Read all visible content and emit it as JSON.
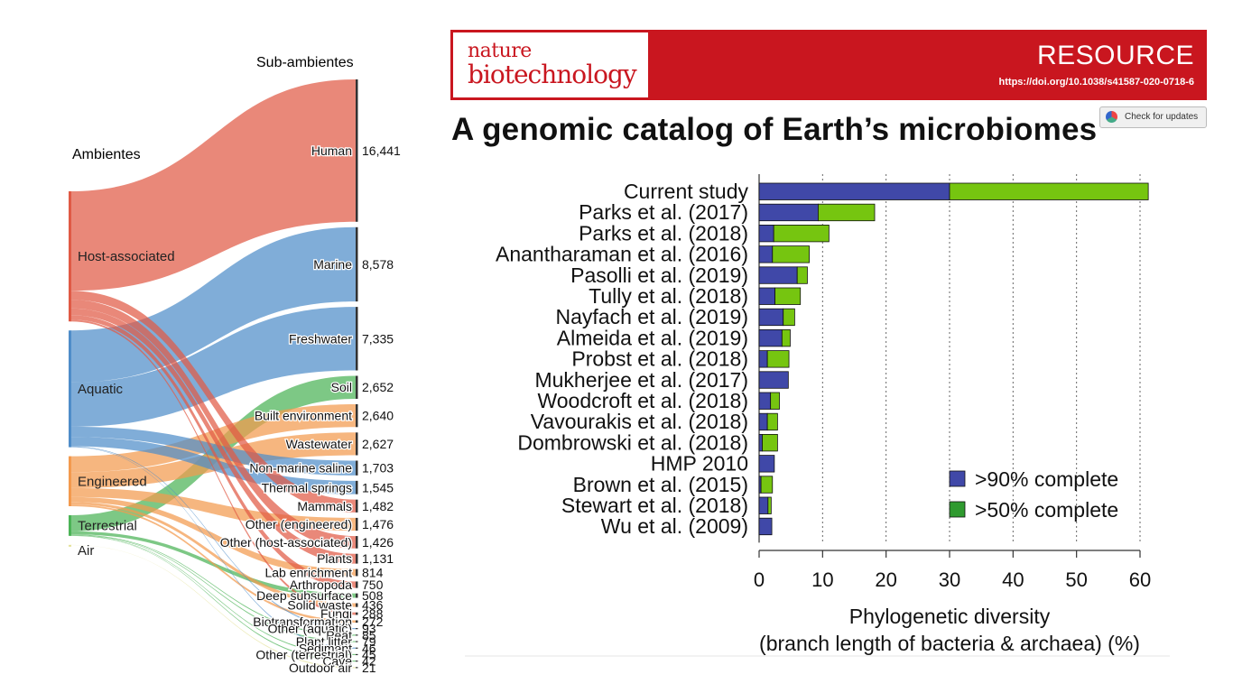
{
  "slide": {
    "label_ambientes": "Ambientes",
    "label_subambientes": "Sub-ambientes"
  },
  "paper": {
    "journal_line1": "nature",
    "journal_line2": "biotechnology",
    "section": "RESOURCE",
    "doi": "https://doi.org/10.1038/s41587-020-0718-6",
    "title": "A genomic catalog of Earth’s microbiomes",
    "check_updates": "Check for updates"
  },
  "colors": {
    "host": "#e05a45",
    "aquatic": "#4f8dc9",
    "engineered": "#f39a4e",
    "terrestrial": "#4bb356",
    "air": "#e5e29a",
    "bar_blue": "#4048a8",
    "bar_green": "#76c510",
    "legend_green": "#2f9a2f"
  },
  "chart_data": [
    {
      "type": "sankey",
      "sources": [
        "Host-associated",
        "Aquatic",
        "Engineered",
        "Terrestrial",
        "Air"
      ],
      "targets": [
        {
          "name": "Human",
          "value": "16,441",
          "source": "Host-associated"
        },
        {
          "name": "Marine",
          "value": "8,578",
          "source": "Aquatic"
        },
        {
          "name": "Freshwater",
          "value": "7,335",
          "source": "Aquatic"
        },
        {
          "name": "Soil",
          "value": "2,652",
          "source": "Terrestrial"
        },
        {
          "name": "Built environment",
          "value": "2,640",
          "source": "Engineered"
        },
        {
          "name": "Wastewater",
          "value": "2,627",
          "source": "Engineered"
        },
        {
          "name": "Non-marine saline",
          "value": "1,703",
          "source": "Aquatic"
        },
        {
          "name": "Thermal springs",
          "value": "1,545",
          "source": "Aquatic"
        },
        {
          "name": "Mammals",
          "value": "1,482",
          "source": "Host-associated"
        },
        {
          "name": "Other (engineered)",
          "value": "1,476",
          "source": "Engineered"
        },
        {
          "name": "Other (host-associated)",
          "value": "1,426",
          "source": "Host-associated"
        },
        {
          "name": "Plants",
          "value": "1,131",
          "source": "Host-associated"
        },
        {
          "name": "Lab enrichment",
          "value": "814",
          "source": "Engineered"
        },
        {
          "name": "Arthropoda",
          "value": "750",
          "source": "Host-associated"
        },
        {
          "name": "Deep subsurface",
          "value": "508",
          "source": "Terrestrial"
        },
        {
          "name": "Solid waste",
          "value": "436",
          "source": "Engineered"
        },
        {
          "name": "Fungi",
          "value": "288",
          "source": "Host-associated"
        },
        {
          "name": "Biotransformation",
          "value": "272",
          "source": "Engineered"
        },
        {
          "name": "Other (aquatic)",
          "value": "93",
          "source": "Aquatic"
        },
        {
          "name": "Peat",
          "value": "85",
          "source": "Terrestrial"
        },
        {
          "name": "Plant litter",
          "value": "79",
          "source": "Terrestrial"
        },
        {
          "name": "Sediment",
          "value": "46",
          "source": "Aquatic"
        },
        {
          "name": "Other (terrestrial)",
          "value": "45",
          "source": "Terrestrial"
        },
        {
          "name": "Cave",
          "value": "42",
          "source": "Terrestrial"
        },
        {
          "name": "Outdoor air",
          "value": "21",
          "source": "Air"
        }
      ]
    },
    {
      "type": "bar",
      "orientation": "horizontal",
      "stacked": true,
      "categories": [
        "Current study",
        "Parks et al. (2017)",
        "Parks et al. (2018)",
        "Anantharaman et al. (2016)",
        "Pasolli et al. (2019)",
        "Tully et al. (2018)",
        "Nayfach et al. (2019)",
        "Almeida et al. (2019)",
        "Probst et al. (2018)",
        "Mukherjee et al. (2017)",
        "Woodcroft et al. (2018)",
        "Vavourakis et al. (2018)",
        "Dombrowski et al. (2018)",
        "HMP 2010",
        "Brown et al. (2015)",
        "Stewart et al. (2018)",
        "Wu et al. (2009)"
      ],
      "series": [
        {
          "name": ">90% complete",
          "values": [
            30,
            9.3,
            2.3,
            2.1,
            6.0,
            2.5,
            3.8,
            3.6,
            1.3,
            4.6,
            1.8,
            1.3,
            0.5,
            2.4,
            0.3,
            1.4,
            2.0
          ]
        },
        {
          "name": ">50% complete",
          "values": [
            31.3,
            8.9,
            8.7,
            5.8,
            1.6,
            4.0,
            1.8,
            1.3,
            3.4,
            0.0,
            1.4,
            1.6,
            2.4,
            0.0,
            1.8,
            0.5,
            0.0
          ]
        }
      ],
      "xlabel": [
        "Phylogenetic diversity",
        "(branch length of bacteria & archaea) (%)"
      ],
      "xlim": [
        0,
        60
      ],
      "xticks": [
        0,
        10,
        20,
        30,
        40,
        50,
        60
      ],
      "grid": "vertical dashed",
      "legend": "bottom-right"
    }
  ]
}
